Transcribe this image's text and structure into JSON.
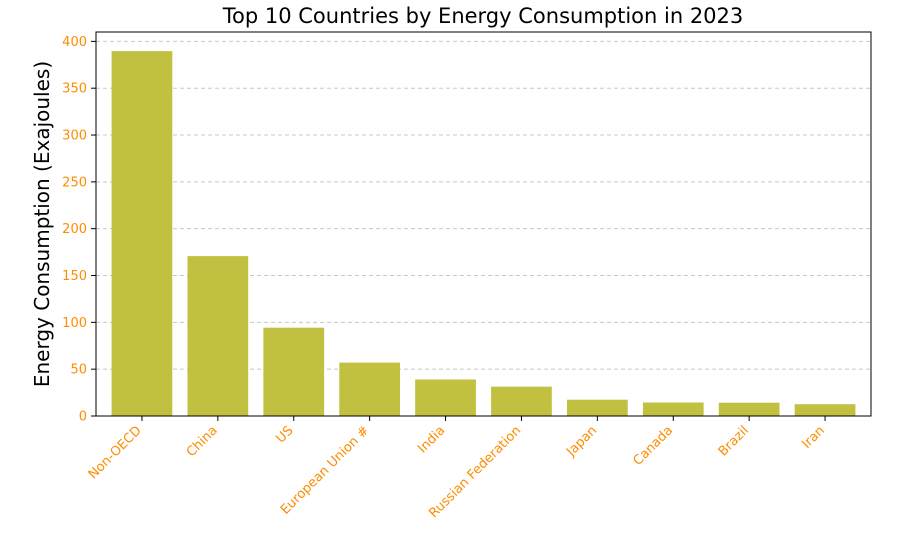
{
  "chart_data": {
    "type": "bar",
    "title": "Top 10 Countries by Energy Consumption in 2023",
    "xlabel": "",
    "ylabel": "Energy Consumption (Exajoules)",
    "categories": [
      "Non-OECD",
      "China",
      "US",
      "European Union #",
      "India",
      "Russian Federation",
      "Japan",
      "Canada",
      "Brazil",
      "Iran"
    ],
    "values": [
      389.6,
      170.7,
      94.3,
      57.0,
      39.0,
      31.3,
      17.4,
      14.4,
      14.2,
      12.6
    ],
    "ylim": [
      0,
      410
    ],
    "yticks": [
      0,
      50,
      100,
      150,
      200,
      250,
      300,
      350,
      400
    ],
    "grid": "y-dashed",
    "legend": "none",
    "colors": {
      "bar": "#c1c040",
      "tick_labels": "#ff8c00",
      "axis": "#000000",
      "grid": "#c8c8c8"
    }
  }
}
